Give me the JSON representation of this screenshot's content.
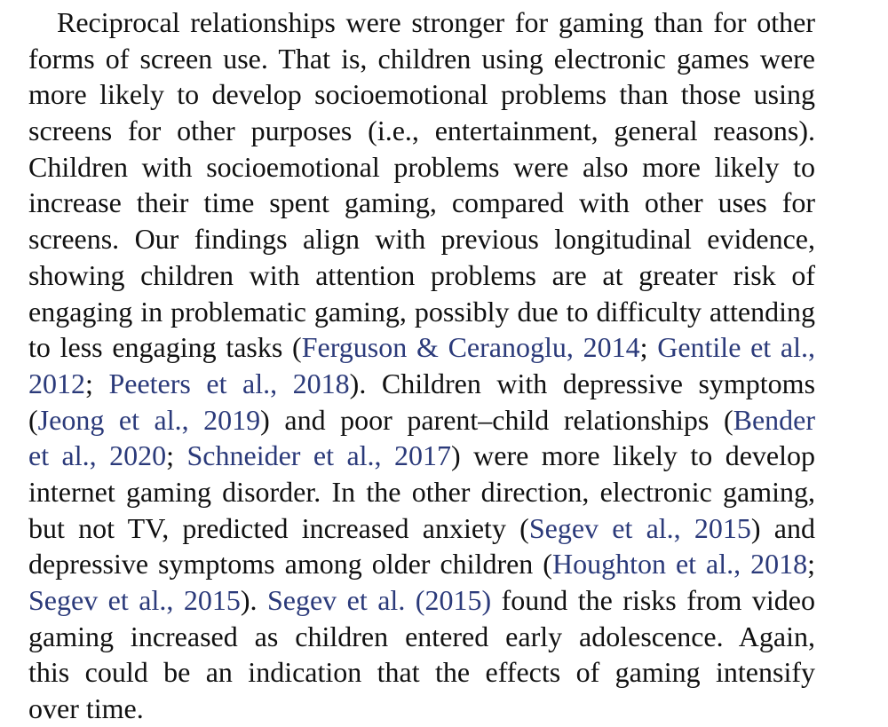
{
  "paragraph": {
    "link_color": "#2b3a7a",
    "lines": [
      [
        {
          "t": "Reciprocal relationships were stronger for gaming than for other"
        }
      ],
      [
        {
          "t": "forms of screen use. That is, children using electronic games were"
        }
      ],
      [
        {
          "t": "more likely to develop socioemotional problems than those using"
        }
      ],
      [
        {
          "t": "screens for other purposes (i.e., entertainment, general reasons)."
        }
      ],
      [
        {
          "t": "Children with socioemotional problems were also more likely to"
        }
      ],
      [
        {
          "t": "increase their time spent gaming, compared with other uses for"
        }
      ],
      [
        {
          "t": "screens. Our findings align with previous longitudinal evidence,"
        }
      ],
      [
        {
          "t": "showing children with attention problems are at greater risk of"
        }
      ],
      [
        {
          "t": "engaging in problematic gaming, possibly due to difficulty attending"
        }
      ],
      [
        {
          "t": "to less engaging tasks ("
        },
        {
          "t": "Ferguson & Ceranoglu, 2014",
          "cite": true
        },
        {
          "t": "; "
        },
        {
          "t": "Gentile et al.,",
          "cite": true
        }
      ],
      [
        {
          "t": "2012",
          "cite": true
        },
        {
          "t": "; "
        },
        {
          "t": "Peeters et al., 2018",
          "cite": true
        },
        {
          "t": "). Children with depressive symptoms"
        }
      ],
      [
        {
          "t": "("
        },
        {
          "t": "Jeong et al., 2019",
          "cite": true
        },
        {
          "t": ") and poor parent–child relationships ("
        },
        {
          "t": "Bender",
          "cite": true
        }
      ],
      [
        {
          "t": "et al., 2020",
          "cite": true
        },
        {
          "t": "; "
        },
        {
          "t": "Schneider et al., 2017",
          "cite": true
        },
        {
          "t": ") were more likely to develop"
        }
      ],
      [
        {
          "t": "internet gaming disorder. In the other direction, electronic gaming,"
        }
      ],
      [
        {
          "t": "but not TV, predicted increased anxiety ("
        },
        {
          "t": "Segev et al., 2015",
          "cite": true
        },
        {
          "t": ") and"
        }
      ],
      [
        {
          "t": "depressive symptoms among older children ("
        },
        {
          "t": "Houghton et al., 2018",
          "cite": true
        },
        {
          "t": ";"
        }
      ],
      [
        {
          "t": "Segev et al., 2015",
          "cite": true
        },
        {
          "t": "). "
        },
        {
          "t": "Segev et al. (2015)",
          "cite": true
        },
        {
          "t": " found the risks from video"
        }
      ],
      [
        {
          "t": "gaming increased as children entered early adolescence. Again,"
        }
      ],
      [
        {
          "t": "this could be an indication that the effects of gaming intensify"
        }
      ],
      [
        {
          "t": "over time."
        }
      ]
    ]
  }
}
